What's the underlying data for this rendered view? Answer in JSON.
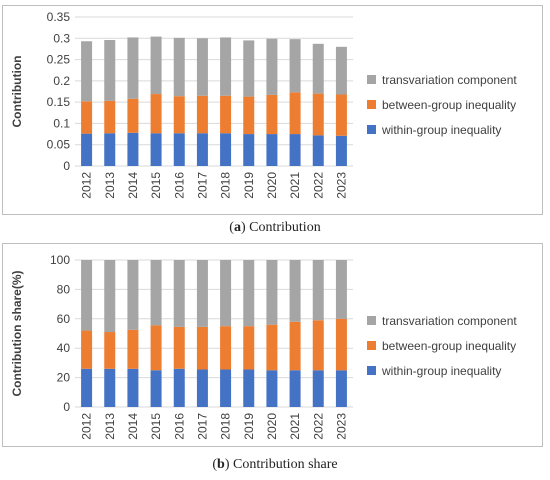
{
  "captions": {
    "a": {
      "tag": "a",
      "text": "Contribution"
    },
    "b": {
      "tag": "b",
      "text": "Contribution share"
    }
  },
  "colors": {
    "within": "#4472c4",
    "between": "#ed7d31",
    "transvariation": "#a5a5a5",
    "grid": "#d9d9d9",
    "axis_text": "#404040"
  },
  "chart_data": [
    {
      "type": "bar",
      "stacked": true,
      "title": "",
      "xlabel": "",
      "ylabel": "Contribution",
      "ylim": [
        0,
        0.35
      ],
      "yticks": [
        "0",
        "0.05",
        "0.1",
        "0.15",
        "0.2",
        "0.25",
        "0.3",
        "0.35"
      ],
      "ytick_values": [
        0,
        0.05,
        0.1,
        0.15,
        0.2,
        0.25,
        0.3,
        0.35
      ],
      "grid": true,
      "legend_position": "right",
      "categories": [
        "2012",
        "2013",
        "2014",
        "2015",
        "2016",
        "2017",
        "2018",
        "2019",
        "2020",
        "2021",
        "2022",
        "2023"
      ],
      "series": [
        {
          "name": "within-group inequality",
          "color_key": "within",
          "values": [
            0.076,
            0.077,
            0.078,
            0.077,
            0.077,
            0.077,
            0.077,
            0.075,
            0.075,
            0.075,
            0.072,
            0.071
          ]
        },
        {
          "name": "between-group inequality",
          "color_key": "between",
          "values": [
            0.076,
            0.076,
            0.08,
            0.092,
            0.087,
            0.088,
            0.088,
            0.088,
            0.092,
            0.098,
            0.098,
            0.097
          ]
        },
        {
          "name": "transvariation component",
          "color_key": "transvariation",
          "values": [
            0.141,
            0.143,
            0.144,
            0.135,
            0.137,
            0.135,
            0.137,
            0.132,
            0.132,
            0.125,
            0.117,
            0.112
          ]
        }
      ]
    },
    {
      "type": "bar",
      "stacked": true,
      "title": "",
      "xlabel": "",
      "ylabel": "Contribution share(%)",
      "ylim": [
        0,
        100
      ],
      "yticks": [
        "0",
        "20",
        "40",
        "60",
        "80",
        "100"
      ],
      "ytick_values": [
        0,
        20,
        40,
        60,
        80,
        100
      ],
      "grid": true,
      "legend_position": "right",
      "categories": [
        "2012",
        "2013",
        "2014",
        "2015",
        "2016",
        "2017",
        "2018",
        "2019",
        "2020",
        "2021",
        "2022",
        "2023"
      ],
      "series": [
        {
          "name": "within-group inequality",
          "color_key": "within",
          "values": [
            26,
            26,
            26,
            25,
            26,
            25.5,
            25.5,
            25.5,
            25,
            25,
            25,
            25
          ]
        },
        {
          "name": "between-group inequality",
          "color_key": "between",
          "values": [
            26,
            25,
            26.5,
            30.5,
            28.5,
            29,
            29.5,
            29.5,
            31,
            33,
            34,
            35
          ]
        },
        {
          "name": "transvariation component",
          "color_key": "transvariation",
          "values": [
            48,
            49,
            47.5,
            44.5,
            45.5,
            45.5,
            45,
            45,
            44,
            42,
            41,
            40
          ]
        }
      ]
    }
  ]
}
